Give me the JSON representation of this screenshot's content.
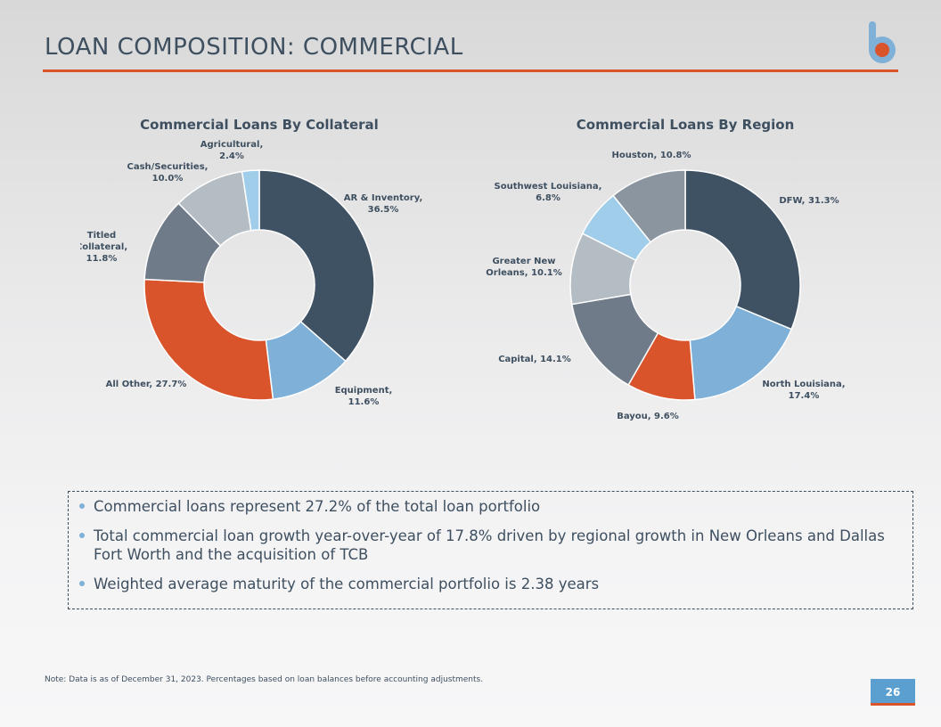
{
  "header": {
    "title": "LOAN COMPOSITION: COMMERCIAL"
  },
  "logo": {
    "letter": "b",
    "colors": {
      "stem": "#7fb0d8",
      "dot": "#d9532b"
    }
  },
  "chart_data": [
    {
      "type": "pie",
      "variant": "donut",
      "title": "Commercial Loans By Collateral",
      "categories": [
        "AR & Inventory",
        "Equipment",
        "All Other",
        "Titled Collateral",
        "Cash/Securities",
        "Agricultural"
      ],
      "values": [
        36.5,
        11.6,
        27.7,
        11.8,
        10.0,
        2.4
      ],
      "unit": "%",
      "colors": [
        "#3f5263",
        "#7fb0d8",
        "#d9532b",
        "#6f7b88",
        "#b4bcc4",
        "#9fcdea"
      ],
      "labels": [
        [
          "AR & Inventory,",
          "36.5%"
        ],
        [
          "Equipment,",
          "11.6%"
        ],
        [
          "All Other, 27.7%"
        ],
        [
          "Titled",
          "Collateral,",
          "11.8%"
        ],
        [
          "Cash/Securities,",
          "10.0%"
        ],
        [
          "Agricultural,",
          "2.4%"
        ]
      ]
    },
    {
      "type": "pie",
      "variant": "donut",
      "title": "Commercial Loans By Region",
      "categories": [
        "DFW",
        "North Louisiana",
        "Bayou",
        "Capital",
        "Greater New Orleans",
        "Southwest Louisiana",
        "Houston"
      ],
      "values": [
        31.3,
        17.4,
        9.6,
        14.1,
        10.1,
        6.8,
        10.8
      ],
      "unit": "%",
      "colors": [
        "#3f5263",
        "#7fb0d8",
        "#d9532b",
        "#6f7b88",
        "#b4bcc4",
        "#9fcdea",
        "#8b959f"
      ],
      "labels": [
        [
          "DFW, 31.3%"
        ],
        [
          "North Louisiana,",
          "17.4%"
        ],
        [
          "Bayou, 9.6%"
        ],
        [
          "Capital, 14.1%"
        ],
        [
          "Greater New",
          "Orleans, 10.1%"
        ],
        [
          "Southwest Louisiana,",
          "6.8%"
        ],
        [
          "Houston, 10.8%"
        ]
      ]
    }
  ],
  "bullets": [
    "Commercial loans represent 27.2% of the total loan portfolio",
    "Total commercial loan growth year-over-year of 17.8% driven by regional growth in New Orleans and Dallas Fort Worth and the acquisition of TCB",
    "Weighted average maturity of the commercial portfolio is 2.38 years"
  ],
  "footer": {
    "note": "Note: Data is as of December 31, 2023. Percentages based on loan balances before accounting adjustments.",
    "page_number": "26"
  }
}
